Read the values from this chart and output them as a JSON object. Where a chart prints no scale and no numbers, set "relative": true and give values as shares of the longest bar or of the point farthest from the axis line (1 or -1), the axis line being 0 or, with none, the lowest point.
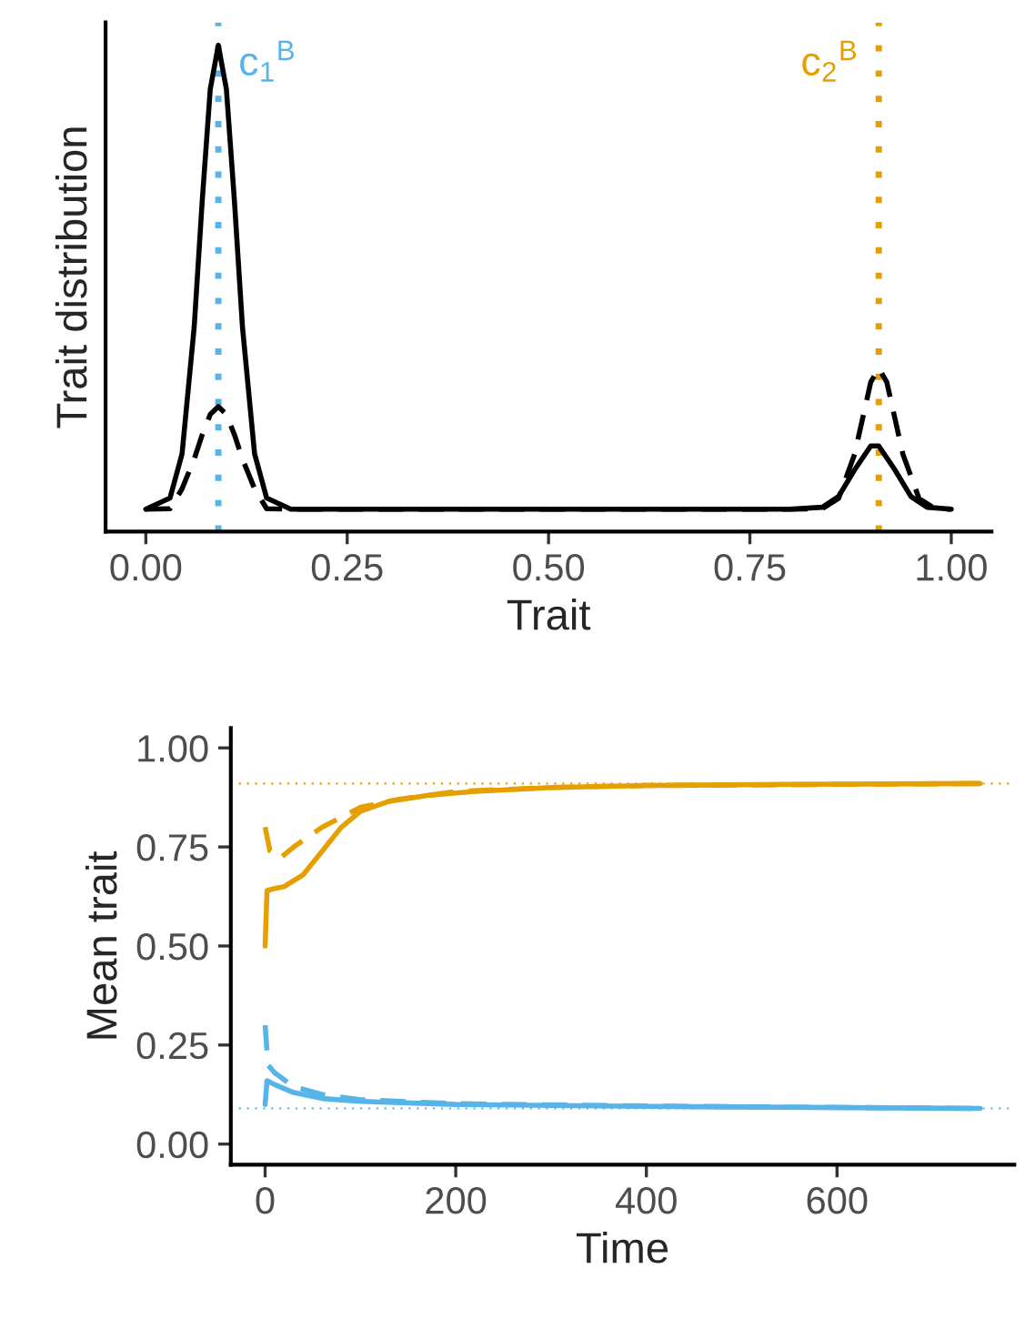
{
  "chart_data": [
    {
      "type": "line",
      "xlabel": "Trait",
      "ylabel": "Trait distribution",
      "relative": true,
      "xlim": [
        -0.05,
        1.05
      ],
      "xticks": [
        {
          "value": 0,
          "label": "0.00"
        },
        {
          "value": 0.25,
          "label": "0.25"
        },
        {
          "value": 0.5,
          "label": "0.50"
        },
        {
          "value": 0.75,
          "label": "0.75"
        },
        {
          "value": 1,
          "label": "1.00"
        }
      ],
      "tick_labels": "x",
      "grid": false,
      "marker": "none",
      "series": [
        {
          "color": "#000000",
          "line_style": "solid",
          "x": [
            0,
            0.03,
            0.045,
            0.06,
            0.07,
            0.08,
            0.09,
            0.1,
            0.11,
            0.12,
            0.135,
            0.15,
            0.18,
            0.5,
            0.8,
            0.84,
            0.86,
            0.88,
            0.9,
            0.91,
            0.93,
            0.95,
            0.97,
            1.0
          ],
          "values": [
            0.046,
            0.069,
            0.16,
            0.42,
            0.68,
            0.91,
            1.0,
            0.91,
            0.68,
            0.42,
            0.16,
            0.069,
            0.046,
            0.046,
            0.046,
            0.05,
            0.072,
            0.127,
            0.176,
            0.176,
            0.127,
            0.072,
            0.05,
            0.046
          ]
        },
        {
          "color": "#000000",
          "line_style": "dashed",
          "x": [
            0,
            0.03,
            0.045,
            0.06,
            0.07,
            0.08,
            0.09,
            0.1,
            0.11,
            0.12,
            0.135,
            0.15,
            0.18,
            0.5,
            0.8,
            0.84,
            0.86,
            0.88,
            0.9,
            0.91,
            0.92,
            0.94,
            0.96,
            0.98,
            1.0
          ],
          "values": [
            0.046,
            0.047,
            0.088,
            0.149,
            0.199,
            0.241,
            0.257,
            0.241,
            0.199,
            0.149,
            0.088,
            0.047,
            0.046,
            0.046,
            0.046,
            0.047,
            0.068,
            0.159,
            0.307,
            0.336,
            0.307,
            0.159,
            0.068,
            0.047,
            0.046
          ]
        }
      ],
      "ref_lines": [
        {
          "axis": "x",
          "value": 0.09,
          "label": "c$_{1}$$^{B}$",
          "color": "#56b4e9",
          "line_style": "dotted"
        },
        {
          "axis": "x",
          "value": 0.91,
          "label": "c$_{2}$$^{B}$",
          "color": "#e69f00",
          "line_style": "dotted"
        }
      ]
    },
    {
      "type": "line",
      "xlabel": "Time",
      "ylabel": "Mean trait",
      "xlim": [
        -36,
        786
      ],
      "ylim": [
        -0.052,
        1.05
      ],
      "xticks": [
        0,
        200,
        400,
        600
      ],
      "yticks": [
        {
          "value": 0,
          "label": "0.00"
        },
        {
          "value": 0.25,
          "label": "0.25"
        },
        {
          "value": 0.5,
          "label": "0.50"
        },
        {
          "value": 0.75,
          "label": "0.75"
        },
        {
          "value": 1,
          "label": "1.00"
        }
      ],
      "grid": false,
      "marker": "none",
      "series": [
        {
          "color": "#e69f00",
          "line_style": "solid",
          "x": [
            0,
            2,
            10,
            20,
            40,
            60,
            80,
            100,
            130,
            170,
            220,
            300,
            400,
            550,
            750
          ],
          "values": [
            0.5,
            0.64,
            0.645,
            0.65,
            0.68,
            0.74,
            0.8,
            0.84,
            0.865,
            0.88,
            0.89,
            0.9,
            0.905,
            0.908,
            0.91
          ]
        },
        {
          "color": "#e69f00",
          "line_style": "dashed",
          "x": [
            0,
            5,
            15,
            30,
            60,
            100,
            140,
            200,
            300,
            400,
            750
          ],
          "values": [
            0.8,
            0.74,
            0.72,
            0.75,
            0.8,
            0.85,
            0.87,
            0.89,
            0.9,
            0.905,
            0.91
          ]
        },
        {
          "color": "#56b4e9",
          "line_style": "solid",
          "x": [
            0,
            2,
            10,
            30,
            60,
            100,
            200,
            400,
            750
          ],
          "values": [
            0.1,
            0.16,
            0.15,
            0.13,
            0.115,
            0.108,
            0.1,
            0.095,
            0.09
          ]
        },
        {
          "color": "#56b4e9",
          "line_style": "dashed",
          "x": [
            0,
            3,
            10,
            30,
            60,
            100,
            200,
            400,
            750
          ],
          "values": [
            0.3,
            0.2,
            0.18,
            0.145,
            0.125,
            0.112,
            0.102,
            0.096,
            0.09
          ]
        }
      ],
      "ref_lines": [
        {
          "axis": "y",
          "value": 0.91,
          "color": "#e69f00",
          "line_style": "dotted"
        },
        {
          "axis": "y",
          "value": 0.09,
          "color": "#56b4e9",
          "line_style": "dotted"
        }
      ]
    }
  ]
}
